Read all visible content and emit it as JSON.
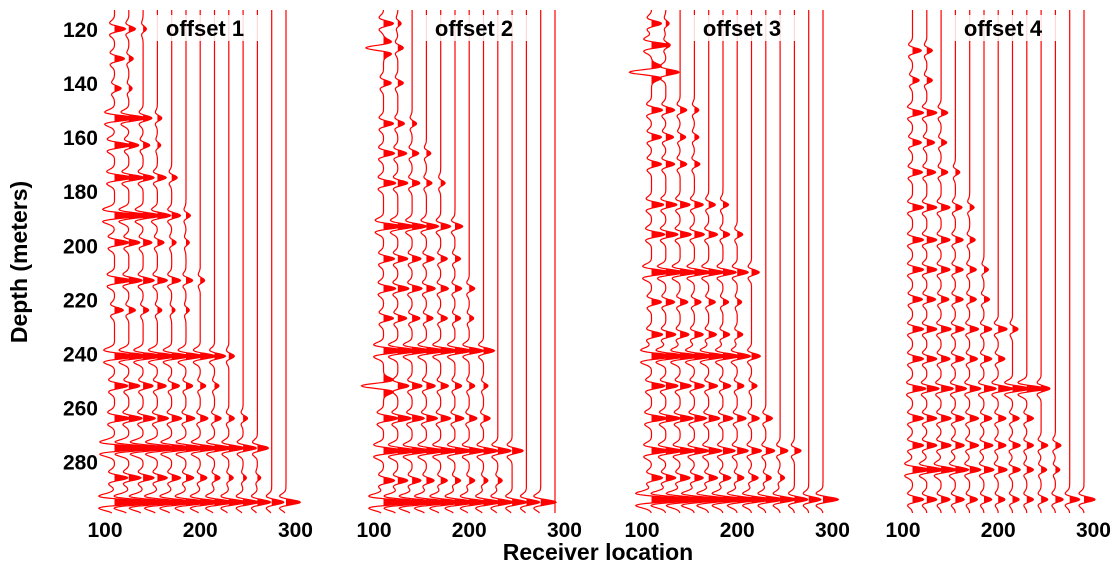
{
  "chart_data": {
    "type": "seismic-wiggle",
    "ylabel": "Depth (meters)",
    "xlabel": "Receiver location",
    "y_ticks": [
      120,
      140,
      160,
      180,
      200,
      220,
      240,
      260,
      280
    ],
    "ylim": [
      113,
      299
    ],
    "y_inverted": true,
    "x_ticks": [
      100,
      200,
      300
    ],
    "xlim": [
      100,
      310
    ],
    "grid": false,
    "color": "#ff0000",
    "panels": [
      {
        "title": "offset 1",
        "trace_receivers": [
          110,
          125,
          140,
          155,
          170,
          185,
          200,
          215,
          230,
          245,
          260,
          275,
          290
        ],
        "reflectors": [
          {
            "depth": 120,
            "amps": [
              1.0,
              0.6,
              0.3
            ]
          },
          {
            "depth": 131,
            "amps": [
              0.9,
              0.4
            ]
          },
          {
            "depth": 142,
            "amps": [
              0.6,
              0.3
            ]
          },
          {
            "depth": 153,
            "amps": [
              2.0,
              1.6,
              0.8,
              0.4
            ]
          },
          {
            "depth": 163,
            "amps": [
              1.5,
              0.9,
              0.6,
              0.3
            ]
          },
          {
            "depth": 175,
            "amps": [
              1.6,
              1.4,
              1.0,
              0.8,
              0.5
            ]
          },
          {
            "depth": 189,
            "amps": [
              2.4,
              2.0,
              1.6,
              1.2,
              0.8,
              0.4
            ]
          },
          {
            "depth": 199,
            "amps": [
              1.3,
              1.0,
              0.8,
              0.6,
              0.4,
              0.3
            ]
          },
          {
            "depth": 213,
            "amps": [
              1.5,
              1.2,
              1.0,
              0.9,
              0.8,
              0.6,
              0.4
            ]
          },
          {
            "depth": 224,
            "amps": [
              0.8,
              0.6,
              0.5,
              0.4,
              0.3,
              0.3
            ]
          },
          {
            "depth": 241,
            "amps": [
              2.2,
              2.0,
              1.9,
              1.8,
              1.7,
              1.6,
              1.4,
              1.0,
              0.5
            ]
          },
          {
            "depth": 252,
            "amps": [
              1.2,
              1.0,
              0.9,
              0.8,
              0.7,
              0.6,
              0.5,
              0.4
            ]
          },
          {
            "depth": 264,
            "amps": [
              1.4,
              1.2,
              1.1,
              1.0,
              0.9,
              0.8,
              0.7,
              0.6,
              0.5,
              0.4
            ]
          },
          {
            "depth": 275,
            "amps": [
              3.0,
              2.8,
              2.6,
              2.4,
              2.2,
              2.0,
              1.8,
              1.6,
              1.4,
              1.2,
              1.0
            ]
          },
          {
            "depth": 286,
            "amps": [
              1.2,
              1.1,
              1.0,
              0.9,
              0.8,
              0.7,
              0.6,
              0.5,
              0.4,
              0.3,
              0.3
            ]
          },
          {
            "depth": 295,
            "amps": [
              3.2,
              3.0,
              2.8,
              2.6,
              2.4,
              2.2,
              2.0,
              1.8,
              1.6,
              1.4,
              1.2,
              1.1,
              1.3
            ]
          }
        ]
      },
      {
        "title": "offset 2",
        "trace_receivers": [
          110,
          125,
          140,
          155,
          170,
          185,
          200,
          215,
          230,
          245,
          260,
          275,
          290
        ],
        "reflectors": [
          {
            "depth": 118,
            "amps": [
              0.9,
              0.3
            ]
          },
          {
            "depth": 127,
            "amps": [
              -1.6,
              0.5
            ]
          },
          {
            "depth": 140,
            "amps": [
              0.7,
              0.5
            ]
          },
          {
            "depth": 155,
            "amps": [
              0.9,
              0.6,
              0.4
            ]
          },
          {
            "depth": 166,
            "amps": [
              1.0,
              0.8,
              0.6,
              0.4
            ]
          },
          {
            "depth": 177,
            "amps": [
              1.1,
              0.9,
              0.7,
              0.5,
              0.4
            ]
          },
          {
            "depth": 193,
            "amps": [
              1.7,
              1.5,
              1.3,
              1.1,
              0.9,
              0.7
            ]
          },
          {
            "depth": 205,
            "amps": [
              1.0,
              0.9,
              0.8,
              0.7,
              0.6,
              0.5
            ]
          },
          {
            "depth": 216,
            "amps": [
              1.1,
              1.0,
              0.9,
              0.8,
              0.7,
              0.6,
              0.5
            ]
          },
          {
            "depth": 227,
            "amps": [
              0.9,
              0.8,
              0.7,
              0.6,
              0.6,
              0.5,
              0.4
            ]
          },
          {
            "depth": 239,
            "amps": [
              2.0,
              1.9,
              1.8,
              1.7,
              1.6,
              1.5,
              1.3,
              1.0
            ]
          },
          {
            "depth": 252,
            "amps": [
              -2.0,
              1.0,
              0.9,
              0.8,
              0.7,
              0.6,
              0.5,
              0.4
            ]
          },
          {
            "depth": 264,
            "amps": [
              1.3,
              1.2,
              1.1,
              1.0,
              0.9,
              0.8,
              0.7,
              0.6
            ]
          },
          {
            "depth": 276,
            "amps": [
              2.0,
              1.9,
              1.8,
              1.7,
              1.6,
              1.5,
              1.4,
              1.3,
              1.2,
              1.0
            ]
          },
          {
            "depth": 287,
            "amps": [
              1.0,
              0.9,
              0.8,
              0.7,
              0.6,
              0.5,
              0.5,
              0.4,
              0.4
            ]
          },
          {
            "depth": 295,
            "amps": [
              3.0,
              2.8,
              2.6,
              2.4,
              2.2,
              2.0,
              1.8,
              1.6,
              1.4,
              1.3,
              1.2,
              1.4
            ]
          }
        ]
      },
      {
        "title": "offset 3",
        "trace_receivers": [
          110,
          125,
          140,
          155,
          170,
          185,
          200,
          215,
          230,
          245,
          260,
          275,
          290
        ],
        "reflectors": [
          {
            "depth": 118,
            "amps": [
              0.9,
              0.3
            ]
          },
          {
            "depth": 126,
            "amps": [
              1.6,
              0.4
            ]
          },
          {
            "depth": 136,
            "amps": [
              -2.0,
              1.2
            ]
          },
          {
            "depth": 150,
            "amps": [
              1.0,
              0.8,
              0.6,
              0.4
            ]
          },
          {
            "depth": 160,
            "amps": [
              0.9,
              0.7,
              0.5,
              0.4
            ]
          },
          {
            "depth": 170,
            "amps": [
              0.9,
              0.8,
              0.6,
              0.5
            ]
          },
          {
            "depth": 185,
            "amps": [
              1.1,
              1.0,
              0.9,
              0.8,
              0.6,
              0.5
            ]
          },
          {
            "depth": 196,
            "amps": [
              1.2,
              1.1,
              1.0,
              0.9,
              0.8,
              0.6,
              0.5
            ]
          },
          {
            "depth": 210,
            "amps": [
              1.8,
              1.7,
              1.6,
              1.5,
              1.4,
              1.2,
              1.0,
              0.7
            ]
          },
          {
            "depth": 221,
            "amps": [
              0.9,
              0.8,
              0.7,
              0.6,
              0.6,
              0.5,
              0.4
            ]
          },
          {
            "depth": 233,
            "amps": [
              1.0,
              0.9,
              0.8,
              0.8,
              0.7,
              0.6,
              0.5
            ]
          },
          {
            "depth": 241,
            "amps": [
              2.2,
              2.0,
              1.9,
              1.8,
              1.7,
              1.5,
              1.2,
              0.8
            ]
          },
          {
            "depth": 252,
            "amps": [
              1.2,
              1.1,
              1.0,
              0.9,
              0.8,
              0.7,
              0.6,
              0.5
            ]
          },
          {
            "depth": 264,
            "amps": [
              1.4,
              1.3,
              1.2,
              1.1,
              1.0,
              0.9,
              0.8,
              0.7,
              0.6
            ]
          },
          {
            "depth": 276,
            "amps": [
              1.6,
              1.5,
              1.4,
              1.3,
              1.2,
              1.1,
              1.0,
              0.9,
              0.8,
              0.7,
              0.6
            ]
          },
          {
            "depth": 286,
            "amps": [
              1.0,
              0.9,
              0.9,
              0.8,
              0.8,
              0.7,
              0.6,
              0.6,
              0.5,
              0.4
            ]
          },
          {
            "depth": 294,
            "amps": [
              3.2,
              3.0,
              2.8,
              2.6,
              2.4,
              2.2,
              2.0,
              1.8,
              1.6,
              1.4,
              1.2,
              1.1,
              1.4
            ]
          }
        ]
      },
      {
        "title": "offset 4",
        "trace_receivers": [
          110,
          125,
          140,
          155,
          170,
          185,
          200,
          215,
          230,
          245,
          260,
          275,
          290
        ],
        "reflectors": [
          {
            "depth": 128,
            "amps": [
              0.8,
              0.5
            ]
          },
          {
            "depth": 139,
            "amps": [
              0.6,
              0.5
            ]
          },
          {
            "depth": 151,
            "amps": [
              1.0,
              0.9,
              0.6
            ]
          },
          {
            "depth": 162,
            "amps": [
              0.8,
              0.7,
              0.5
            ]
          },
          {
            "depth": 173,
            "amps": [
              0.9,
              0.8,
              0.6,
              0.4
            ]
          },
          {
            "depth": 186,
            "amps": [
              1.0,
              0.9,
              0.8,
              0.6,
              0.4
            ]
          },
          {
            "depth": 198,
            "amps": [
              1.0,
              0.9,
              0.8,
              0.7,
              0.5
            ]
          },
          {
            "depth": 209,
            "amps": [
              1.0,
              0.9,
              0.8,
              0.7,
              0.6,
              0.4
            ]
          },
          {
            "depth": 220,
            "amps": [
              0.9,
              0.8,
              0.7,
              0.7,
              0.6,
              0.5
            ]
          },
          {
            "depth": 231,
            "amps": [
              1.0,
              0.9,
              0.9,
              0.8,
              0.8,
              0.7,
              0.8,
              0.5
            ]
          },
          {
            "depth": 242,
            "amps": [
              1.0,
              0.9,
              0.8,
              0.8,
              0.7,
              0.7,
              0.6
            ]
          },
          {
            "depth": 253,
            "amps": [
              1.2,
              1.1,
              1.1,
              1.0,
              1.0,
              1.1,
              1.3,
              1.6,
              1.8,
              0.8
            ]
          },
          {
            "depth": 264,
            "amps": [
              1.0,
              0.9,
              0.9,
              0.8,
              0.8,
              0.7,
              0.7,
              0.6,
              0.6
            ]
          },
          {
            "depth": 274,
            "amps": [
              1.0,
              0.9,
              0.9,
              0.8,
              0.8,
              0.8,
              0.7,
              0.7,
              0.6,
              0.6,
              0.5
            ]
          },
          {
            "depth": 283,
            "amps": [
              1.6,
              1.5,
              1.4,
              1.2,
              1.0,
              0.9,
              0.8,
              0.7,
              0.6,
              0.5,
              0.4
            ]
          },
          {
            "depth": 294,
            "amps": [
              1.0,
              0.9,
              0.8,
              0.8,
              0.7,
              0.7,
              0.6,
              0.6,
              0.6,
              0.6,
              0.7,
              0.9,
              1.0
            ]
          }
        ]
      }
    ]
  }
}
